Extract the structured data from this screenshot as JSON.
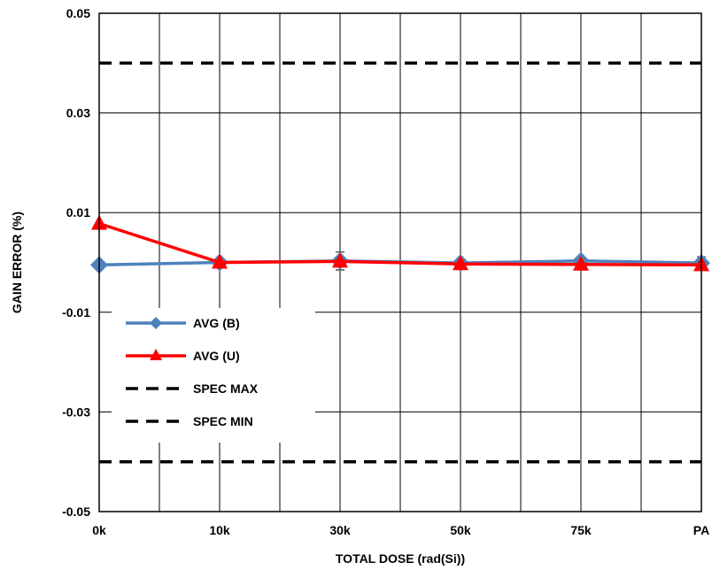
{
  "chart_data": {
    "type": "line",
    "xlabel": "TOTAL DOSE (rad(Si))",
    "ylabel": "GAIN ERROR (%)",
    "categories": [
      "0k",
      "10k",
      "30k",
      "50k",
      "75k",
      "PA"
    ],
    "ylim": [
      -0.05,
      0.05
    ],
    "yticks": [
      "0.05",
      "0.03",
      "0.01",
      "-0.01",
      "-0.03",
      "-0.05"
    ],
    "grid": true,
    "legend_position": "lower-left",
    "series": [
      {
        "name": "AVG (B)",
        "color": "#4f81bd",
        "marker": "diamond",
        "values": [
          -0.0005,
          0.0,
          0.0003,
          -0.0001,
          0.0003,
          -0.0001
        ],
        "error_bars": [
          0.0,
          0.0,
          0.0018,
          0.0,
          0.0,
          0.0012
        ]
      },
      {
        "name": "AVG (U)",
        "color": "#ff0000",
        "marker": "triangle",
        "values": [
          0.0078,
          0.0,
          0.0002,
          -0.0003,
          -0.0004,
          -0.0005
        ]
      },
      {
        "name": "SPEC MAX",
        "color": "#000000",
        "style": "dashed",
        "values": [
          0.04,
          0.04,
          0.04,
          0.04,
          0.04,
          0.04
        ]
      },
      {
        "name": "SPEC MIN",
        "color": "#000000",
        "style": "dashed",
        "values": [
          -0.04,
          -0.04,
          -0.04,
          -0.04,
          -0.04,
          -0.04
        ]
      }
    ]
  }
}
